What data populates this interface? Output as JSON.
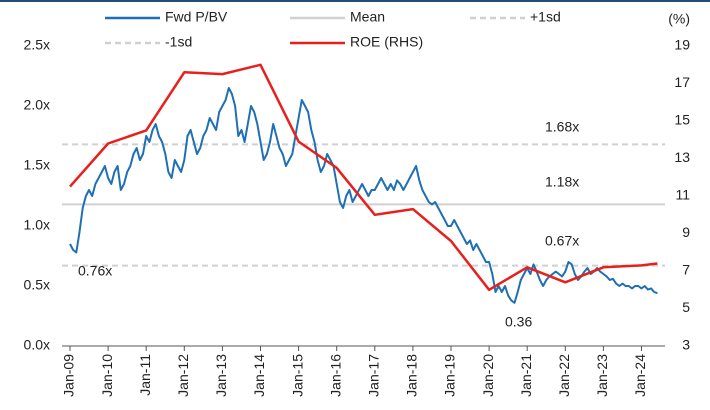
{
  "chart_data": {
    "type": "line",
    "legend": "top",
    "y2_unit": "(%)",
    "ylim": [
      0,
      2.5
    ],
    "yticks": [
      {
        "value": 0,
        "label": "0.0x"
      },
      {
        "value": 0.5,
        "label": "0.5x"
      },
      {
        "value": 1,
        "label": "1.0x"
      },
      {
        "value": 1.5,
        "label": "1.5x"
      },
      {
        "value": 2,
        "label": "2.0x"
      },
      {
        "value": 2.5,
        "label": "2.5x"
      }
    ],
    "y2lim": [
      3,
      19
    ],
    "y2ticks": [
      3,
      5,
      7,
      9,
      11,
      13,
      15,
      17,
      19
    ],
    "xticks": [
      "Jan-09",
      "Jan-10",
      "Jan-11",
      "Jan-12",
      "Jan-13",
      "Jan-14",
      "Jan-15",
      "Jan-16",
      "Jan-17",
      "Jan-18",
      "Jan-19",
      "Jan-20",
      "Jan-21",
      "Jan-22",
      "Jan-23",
      "Jan-24"
    ],
    "reference_lines": [
      {
        "name": "Mean",
        "value": 1.18,
        "color": "#d0d0d0",
        "dash": false
      },
      {
        "name": "+1sd",
        "value": 1.68,
        "color": "#d0d0d0",
        "dash": true
      },
      {
        "name": "-1sd",
        "value": 0.67,
        "color": "#d0d0d0",
        "dash": true
      }
    ],
    "annotations": [
      "1.68x",
      "1.18x",
      "0.67x",
      "0.76x",
      "0.36"
    ],
    "series": [
      {
        "name": "Fwd P/BV",
        "color": "#1f6fb5",
        "x": [
          "Jan-09",
          "Feb-09",
          "Mar-09",
          "Apr-09",
          "May-09",
          "Jun-09",
          "Jul-09",
          "Aug-09",
          "Sep-09",
          "Oct-09",
          "Nov-09",
          "Dec-09",
          "Jan-10",
          "Feb-10",
          "Mar-10",
          "Apr-10",
          "May-10",
          "Jun-10",
          "Jul-10",
          "Aug-10",
          "Sep-10",
          "Oct-10",
          "Nov-10",
          "Dec-10",
          "Jan-11",
          "Feb-11",
          "Mar-11",
          "Apr-11",
          "May-11",
          "Jun-11",
          "Jul-11",
          "Aug-11",
          "Sep-11",
          "Oct-11",
          "Nov-11",
          "Dec-11",
          "Jan-12",
          "Feb-12",
          "Mar-12",
          "Apr-12",
          "May-12",
          "Jun-12",
          "Jul-12",
          "Aug-12",
          "Sep-12",
          "Oct-12",
          "Nov-12",
          "Dec-12",
          "Jan-13",
          "Feb-13",
          "Mar-13",
          "Apr-13",
          "May-13",
          "Jun-13",
          "Jul-13",
          "Aug-13",
          "Sep-13",
          "Oct-13",
          "Nov-13",
          "Dec-13",
          "Jan-14",
          "Feb-14",
          "Mar-14",
          "Apr-14",
          "May-14",
          "Jun-14",
          "Jul-14",
          "Aug-14",
          "Sep-14",
          "Oct-14",
          "Nov-14",
          "Dec-14",
          "Jan-15",
          "Feb-15",
          "Mar-15",
          "Apr-15",
          "May-15",
          "Jun-15",
          "Jul-15",
          "Aug-15",
          "Sep-15",
          "Oct-15",
          "Nov-15",
          "Dec-15",
          "Jan-16",
          "Feb-16",
          "Mar-16",
          "Apr-16",
          "May-16",
          "Jun-16",
          "Jul-16",
          "Aug-16",
          "Sep-16",
          "Oct-16",
          "Nov-16",
          "Dec-16",
          "Jan-17",
          "Feb-17",
          "Mar-17",
          "Apr-17",
          "May-17",
          "Jun-17",
          "Jul-17",
          "Aug-17",
          "Sep-17",
          "Oct-17",
          "Nov-17",
          "Dec-17",
          "Jan-18",
          "Feb-18",
          "Mar-18",
          "Apr-18",
          "May-18",
          "Jun-18",
          "Jul-18",
          "Aug-18",
          "Sep-18",
          "Oct-18",
          "Nov-18",
          "Dec-18",
          "Jan-19",
          "Feb-19",
          "Mar-19",
          "Apr-19",
          "May-19",
          "Jun-19",
          "Jul-19",
          "Aug-19",
          "Sep-19",
          "Oct-19",
          "Nov-19",
          "Dec-19",
          "Jan-20",
          "Feb-20",
          "Mar-20",
          "Apr-20",
          "May-20",
          "Jun-20",
          "Jul-20",
          "Aug-20",
          "Sep-20",
          "Oct-20",
          "Nov-20",
          "Dec-20",
          "Jan-21",
          "Feb-21",
          "Mar-21",
          "Apr-21",
          "May-21",
          "Jun-21",
          "Jul-21",
          "Aug-21",
          "Sep-21",
          "Oct-21",
          "Nov-21",
          "Dec-21",
          "Jan-22",
          "Feb-22",
          "Mar-22",
          "Apr-22",
          "May-22",
          "Jun-22",
          "Jul-22",
          "Aug-22",
          "Sep-22",
          "Oct-22",
          "Nov-22",
          "Dec-22",
          "Jan-23",
          "Feb-23",
          "Mar-23",
          "Apr-23",
          "May-23",
          "Jun-23",
          "Jul-23",
          "Aug-23",
          "Sep-23",
          "Oct-23",
          "Nov-23",
          "Dec-23",
          "Jan-24",
          "Feb-24",
          "Mar-24",
          "Apr-24",
          "May-24",
          "Jun-24"
        ],
        "values": [
          0.85,
          0.8,
          0.78,
          0.95,
          1.15,
          1.25,
          1.3,
          1.25,
          1.35,
          1.4,
          1.45,
          1.5,
          1.4,
          1.35,
          1.45,
          1.5,
          1.3,
          1.35,
          1.45,
          1.5,
          1.6,
          1.65,
          1.55,
          1.6,
          1.75,
          1.7,
          1.8,
          1.85,
          1.75,
          1.7,
          1.6,
          1.45,
          1.4,
          1.55,
          1.5,
          1.45,
          1.55,
          1.75,
          1.8,
          1.7,
          1.6,
          1.65,
          1.75,
          1.8,
          1.9,
          1.85,
          1.8,
          1.95,
          2.0,
          2.05,
          2.15,
          2.1,
          2.0,
          1.75,
          1.8,
          1.7,
          1.85,
          2.0,
          1.95,
          1.85,
          1.7,
          1.55,
          1.6,
          1.7,
          1.85,
          1.75,
          1.65,
          1.6,
          1.5,
          1.55,
          1.6,
          1.75,
          1.9,
          2.05,
          2.0,
          1.95,
          1.8,
          1.7,
          1.55,
          1.45,
          1.5,
          1.6,
          1.55,
          1.5,
          1.35,
          1.2,
          1.15,
          1.25,
          1.3,
          1.2,
          1.25,
          1.3,
          1.35,
          1.3,
          1.25,
          1.3,
          1.3,
          1.35,
          1.4,
          1.35,
          1.3,
          1.35,
          1.3,
          1.38,
          1.35,
          1.3,
          1.35,
          1.4,
          1.45,
          1.5,
          1.38,
          1.3,
          1.25,
          1.2,
          1.18,
          1.2,
          1.15,
          1.1,
          1.05,
          1.0,
          1.0,
          1.05,
          1.0,
          0.95,
          0.9,
          0.85,
          0.88,
          0.8,
          0.85,
          0.8,
          0.75,
          0.7,
          0.7,
          0.6,
          0.45,
          0.5,
          0.45,
          0.5,
          0.42,
          0.38,
          0.36,
          0.45,
          0.55,
          0.6,
          0.65,
          0.6,
          0.68,
          0.62,
          0.55,
          0.5,
          0.55,
          0.58,
          0.6,
          0.62,
          0.6,
          0.58,
          0.62,
          0.7,
          0.68,
          0.6,
          0.55,
          0.58,
          0.62,
          0.65,
          0.6,
          0.62,
          0.65,
          0.62,
          0.6,
          0.58,
          0.55,
          0.56,
          0.52,
          0.5,
          0.52,
          0.5,
          0.5,
          0.48,
          0.5,
          0.5,
          0.48,
          0.5,
          0.47,
          0.48,
          0.45,
          0.44
        ]
      },
      {
        "name": "ROE (RHS)",
        "color": "#e8201c",
        "axis": "y2",
        "x": [
          "Jan-09",
          "Jan-10",
          "Jan-11",
          "Jan-12",
          "Jan-13",
          "Jan-14",
          "Jan-15",
          "Jan-16",
          "Jan-17",
          "Jan-18",
          "Jan-19",
          "Jan-20",
          "Jan-21",
          "Jan-22",
          "Jan-23",
          "Jan-24",
          "Jun-24"
        ],
        "values": [
          11.5,
          13.8,
          14.5,
          17.6,
          17.5,
          18.0,
          13.9,
          12.5,
          10.0,
          10.3,
          8.6,
          6.0,
          7.2,
          6.4,
          7.2,
          7.3,
          7.4
        ]
      }
    ]
  }
}
